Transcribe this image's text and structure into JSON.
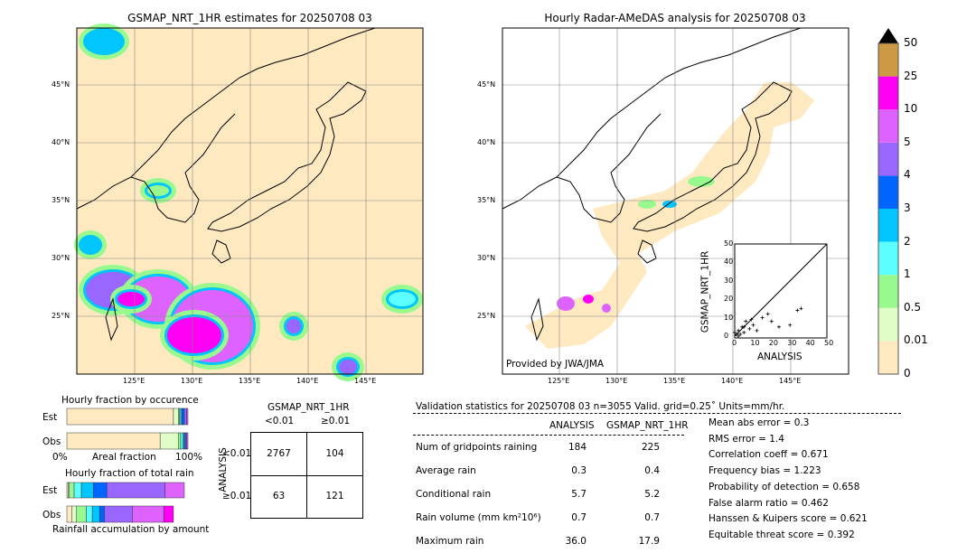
{
  "left_map": {
    "title": "GSMAP_NRT_1HR estimates for 20250708 03",
    "lat_ticks": [
      "45°N",
      "40°N",
      "35°N",
      "30°N",
      "25°N"
    ],
    "lon_ticks": [
      "125°E",
      "130°E",
      "135°E",
      "140°E",
      "145°E"
    ]
  },
  "right_map": {
    "title": "Hourly Radar-AMeDAS analysis for 20250708 03",
    "lat_ticks": [
      "45°N",
      "40°N",
      "35°N",
      "30°N",
      "25°N"
    ],
    "lon_ticks": [
      "125°E",
      "130°E",
      "135°E",
      "140°E",
      "145°E"
    ],
    "credit": "Provided by JWA/JMA"
  },
  "scatter": {
    "ylabel": "GSMAP_NRT_1HR",
    "xlabel": "ANALYSIS",
    "ticks": [
      "0",
      "10",
      "20",
      "30",
      "40",
      "50"
    ]
  },
  "colorbar": {
    "labels": [
      "0",
      "0.01",
      "0.5",
      "1",
      "2",
      "3",
      "4",
      "5",
      "10",
      "25",
      "50"
    ],
    "colors": [
      "#fee9c1",
      "#e0fdc8",
      "#98f98e",
      "#5dfefe",
      "#00c5ff",
      "#0064ff",
      "#9966ff",
      "#de62fe",
      "#ff00f5",
      "#cc9944"
    ],
    "extend_color": "#000000"
  },
  "occurrence": {
    "title": "Hourly fraction by occurence",
    "est_label": "Est",
    "obs_label": "Obs",
    "axis_left": "0%",
    "axis_mid": "Areal fraction",
    "axis_right": "100%"
  },
  "total_rain": {
    "title": "Hourly fraction of total rain",
    "est_label": "Est",
    "obs_label": "Obs",
    "footer": "Rainfall accumulation by amount"
  },
  "contingency": {
    "title": "GSMAP_NRT_1HR",
    "col_labels": [
      "<0.01",
      "≥0.01"
    ],
    "row_axis": "ANALYSIS",
    "row_labels": [
      "<0.01",
      "≥0.01"
    ],
    "cells": [
      [
        "2767",
        "104"
      ],
      [
        "63",
        "121"
      ]
    ]
  },
  "stats": {
    "header": "Validation statistics for 20250708 03  n=3055 Valid. grid=0.25˚ Units=mm/hr.",
    "col_headers": [
      "ANALYSIS",
      "GSMAP_NRT_1HR"
    ],
    "rows": [
      {
        "label": "Num of gridpoints raining",
        "a": "184",
        "g": "225"
      },
      {
        "label": "Average rain",
        "a": "0.3",
        "g": "0.4"
      },
      {
        "label": "Conditional rain",
        "a": "5.7",
        "g": "5.2"
      },
      {
        "label": "Rain volume (mm km²10⁶)",
        "a": "0.7",
        "g": "0.7"
      },
      {
        "label": "Maximum rain",
        "a": "36.0",
        "g": "17.9"
      }
    ],
    "scores": [
      "Mean abs error =    0.3",
      "RMS error =    1.4",
      "Correlation coeff =  0.671",
      "Frequency bias =  1.223",
      "Probability of detection =  0.658",
      "False alarm ratio =  0.462",
      "Hanssen & Kuipers score =  0.621",
      "Equitable threat score =  0.392"
    ]
  },
  "chart_data": {
    "type": "heatmap",
    "occurrence_est": [
      0.88,
      0.04,
      0.01,
      0.01,
      0.01,
      0.02,
      0.02,
      0.01
    ],
    "occurrence_obs": [
      0.77,
      0.15,
      0.02,
      0.02,
      0.01,
      0.01,
      0.01,
      0.01
    ],
    "total_rain_est": [
      0.01,
      0.01,
      0.04,
      0.06,
      0.1,
      0.11,
      0.48,
      0.16,
      0.0
    ],
    "total_rain_obs": [
      0.04,
      0.04,
      0.08,
      0.05,
      0.06,
      0.04,
      0.23,
      0.26,
      0.08
    ],
    "scatter_points": [
      [
        1,
        1
      ],
      [
        2,
        3
      ],
      [
        3,
        1
      ],
      [
        4,
        5
      ],
      [
        5,
        2
      ],
      [
        6,
        8
      ],
      [
        8,
        4
      ],
      [
        9,
        9
      ],
      [
        10,
        6
      ],
      [
        12,
        3
      ],
      [
        15,
        10
      ],
      [
        18,
        12
      ],
      [
        20,
        8
      ],
      [
        24,
        5
      ],
      [
        30,
        6
      ],
      [
        34,
        14
      ],
      [
        36,
        15
      ],
      [
        2,
        0
      ],
      [
        0,
        2
      ],
      [
        5,
        5
      ]
    ]
  }
}
